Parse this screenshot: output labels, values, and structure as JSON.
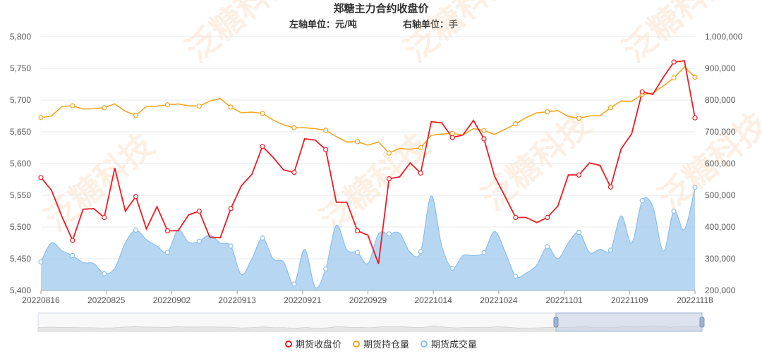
{
  "title": "郑糖主力合约收盘价",
  "subtitle_left": "左轴单位：元/吨",
  "subtitle_right": "右轴单位：手",
  "watermark": "泛糖科技",
  "colors": {
    "close": "#ee1c25",
    "open_interest": "#f5a623",
    "volume": "#a9cff0",
    "volume_line": "#8dc0ec"
  },
  "legend": [
    {
      "label": "期货收盘价",
      "color": "#ee1c25"
    },
    {
      "label": "期货持仓量",
      "color": "#f5a623"
    },
    {
      "label": "期货成交量",
      "color": "#8dc0ec"
    }
  ],
  "chart_data": {
    "type": "line",
    "x_tick_labels": [
      "20220816",
      "20220825",
      "20220902",
      "20220913",
      "20220921",
      "20220929",
      "20221014",
      "20221024",
      "20221101",
      "20221109",
      "20221118"
    ],
    "y_left": {
      "ticks": [
        5400,
        5450,
        5500,
        5550,
        5600,
        5650,
        5700,
        5750,
        5800
      ],
      "range": [
        5400,
        5800
      ]
    },
    "y_right": {
      "ticks": [
        200000,
        300000,
        400000,
        500000,
        600000,
        700000,
        800000,
        900000,
        1000000
      ],
      "tick_labels": [
        "200,000",
        "300,000",
        "400,000",
        "500,000",
        "600,000",
        "700,000",
        "800,000",
        "900,000",
        "1,000,000"
      ],
      "range": [
        200000,
        1000000
      ]
    },
    "grid": true,
    "legend_position": "bottom",
    "series": [
      {
        "name": "期货收盘价",
        "axis": "left",
        "values": [
          5578,
          5558,
          5516,
          5479,
          5528,
          5529,
          5515,
          5593,
          5525,
          5548,
          5497,
          5532,
          5494,
          5494,
          5519,
          5525,
          5484,
          5483,
          5529,
          5565,
          5583,
          5627,
          5610,
          5590,
          5586,
          5639,
          5637,
          5622,
          5539,
          5539,
          5494,
          5487,
          5442,
          5576,
          5579,
          5601,
          5585,
          5666,
          5664,
          5641,
          5645,
          5668,
          5639,
          5580,
          5548,
          5515,
          5515,
          5507,
          5515,
          5533,
          5582,
          5582,
          5601,
          5597,
          5563,
          5623,
          5647,
          5713,
          5709,
          5736,
          5760,
          5762,
          5672
        ]
      },
      {
        "name": "期货持仓量",
        "axis": "right",
        "values": [
          745000,
          750000,
          780000,
          782000,
          772000,
          773000,
          776000,
          788000,
          765000,
          752000,
          780000,
          781000,
          785000,
          788000,
          782000,
          781000,
          797000,
          805000,
          778000,
          760000,
          762000,
          758000,
          737000,
          722000,
          713000,
          713000,
          710000,
          705000,
          685000,
          668000,
          669000,
          658000,
          668000,
          633000,
          648000,
          645000,
          650000,
          689000,
          693000,
          695000,
          690000,
          710000,
          704000,
          692000,
          708000,
          725000,
          745000,
          760000,
          763000,
          767000,
          748000,
          743000,
          750000,
          751000,
          776000,
          797000,
          796000,
          818000,
          822000,
          845000,
          870000,
          905000,
          872000
        ]
      },
      {
        "name": "期货成交量",
        "axis": "right",
        "values": [
          290000,
          350000,
          325000,
          310000,
          288000,
          285000,
          253000,
          270000,
          350000,
          390000,
          360000,
          340000,
          320000,
          390000,
          352000,
          355000,
          375000,
          350000,
          340000,
          250000,
          300000,
          365000,
          300000,
          290000,
          220000,
          330000,
          210000,
          268000,
          405000,
          328000,
          320000,
          285000,
          378000,
          378000,
          380000,
          320000,
          322000,
          498000,
          340000,
          270000,
          310000,
          310000,
          320000,
          386000,
          322000,
          245000,
          255000,
          280000,
          338000,
          300000,
          350000,
          383000,
          320000,
          330000,
          327000,
          435000,
          350000,
          483000,
          465000,
          324000,
          450000,
          392000,
          525000
        ]
      }
    ]
  },
  "datazoom": {
    "window": [
      0.78,
      1.0
    ]
  }
}
